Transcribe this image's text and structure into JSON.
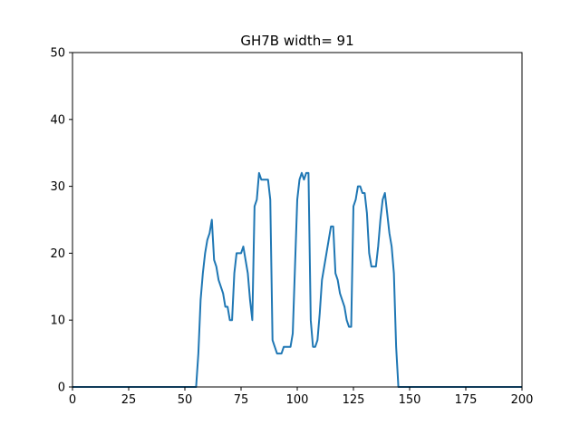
{
  "chart_data": {
    "type": "line",
    "title": "GH7B width= 91",
    "xlabel": "",
    "ylabel": "",
    "xlim": [
      0,
      200
    ],
    "ylim": [
      0,
      50
    ],
    "xticks": [
      0,
      25,
      50,
      75,
      100,
      125,
      150,
      175,
      200
    ],
    "yticks": [
      0,
      10,
      20,
      30,
      40,
      50
    ],
    "grid": false,
    "series": [
      {
        "color": "#1f77b4",
        "x": [
          0,
          55,
          56,
          57,
          58,
          59,
          60,
          61,
          62,
          63,
          64,
          65,
          66,
          67,
          68,
          69,
          70,
          71,
          72,
          73,
          74,
          75,
          76,
          77,
          78,
          79,
          80,
          81,
          82,
          83,
          84,
          85,
          86,
          87,
          88,
          89,
          90,
          91,
          92,
          93,
          94,
          95,
          96,
          97,
          98,
          99,
          100,
          101,
          102,
          103,
          104,
          105,
          106,
          107,
          108,
          109,
          110,
          111,
          112,
          113,
          114,
          115,
          116,
          117,
          118,
          119,
          120,
          121,
          122,
          123,
          124,
          125,
          126,
          127,
          128,
          129,
          130,
          131,
          132,
          133,
          134,
          135,
          136,
          137,
          138,
          139,
          140,
          141,
          142,
          143,
          144,
          145,
          146,
          147,
          200
        ],
        "y": [
          0,
          0,
          5,
          13,
          17,
          20,
          22,
          23,
          25,
          19,
          18,
          16,
          15,
          14,
          12,
          12,
          10,
          10,
          17,
          20,
          20,
          20,
          21,
          19,
          17,
          13,
          10,
          27,
          28,
          32,
          31,
          31,
          31,
          31,
          28,
          7,
          6,
          5,
          5,
          5,
          6,
          6,
          6,
          6,
          8,
          18,
          28,
          31,
          32,
          31,
          32,
          32,
          10,
          6,
          6,
          7,
          11,
          16,
          18,
          20,
          22,
          24,
          24,
          17,
          16,
          14,
          13,
          12,
          10,
          9,
          9,
          27,
          28,
          30,
          30,
          29,
          29,
          26,
          20,
          18,
          18,
          18,
          21,
          25,
          28,
          29,
          26,
          23,
          21,
          17,
          6,
          0,
          0,
          0,
          0
        ]
      }
    ]
  }
}
